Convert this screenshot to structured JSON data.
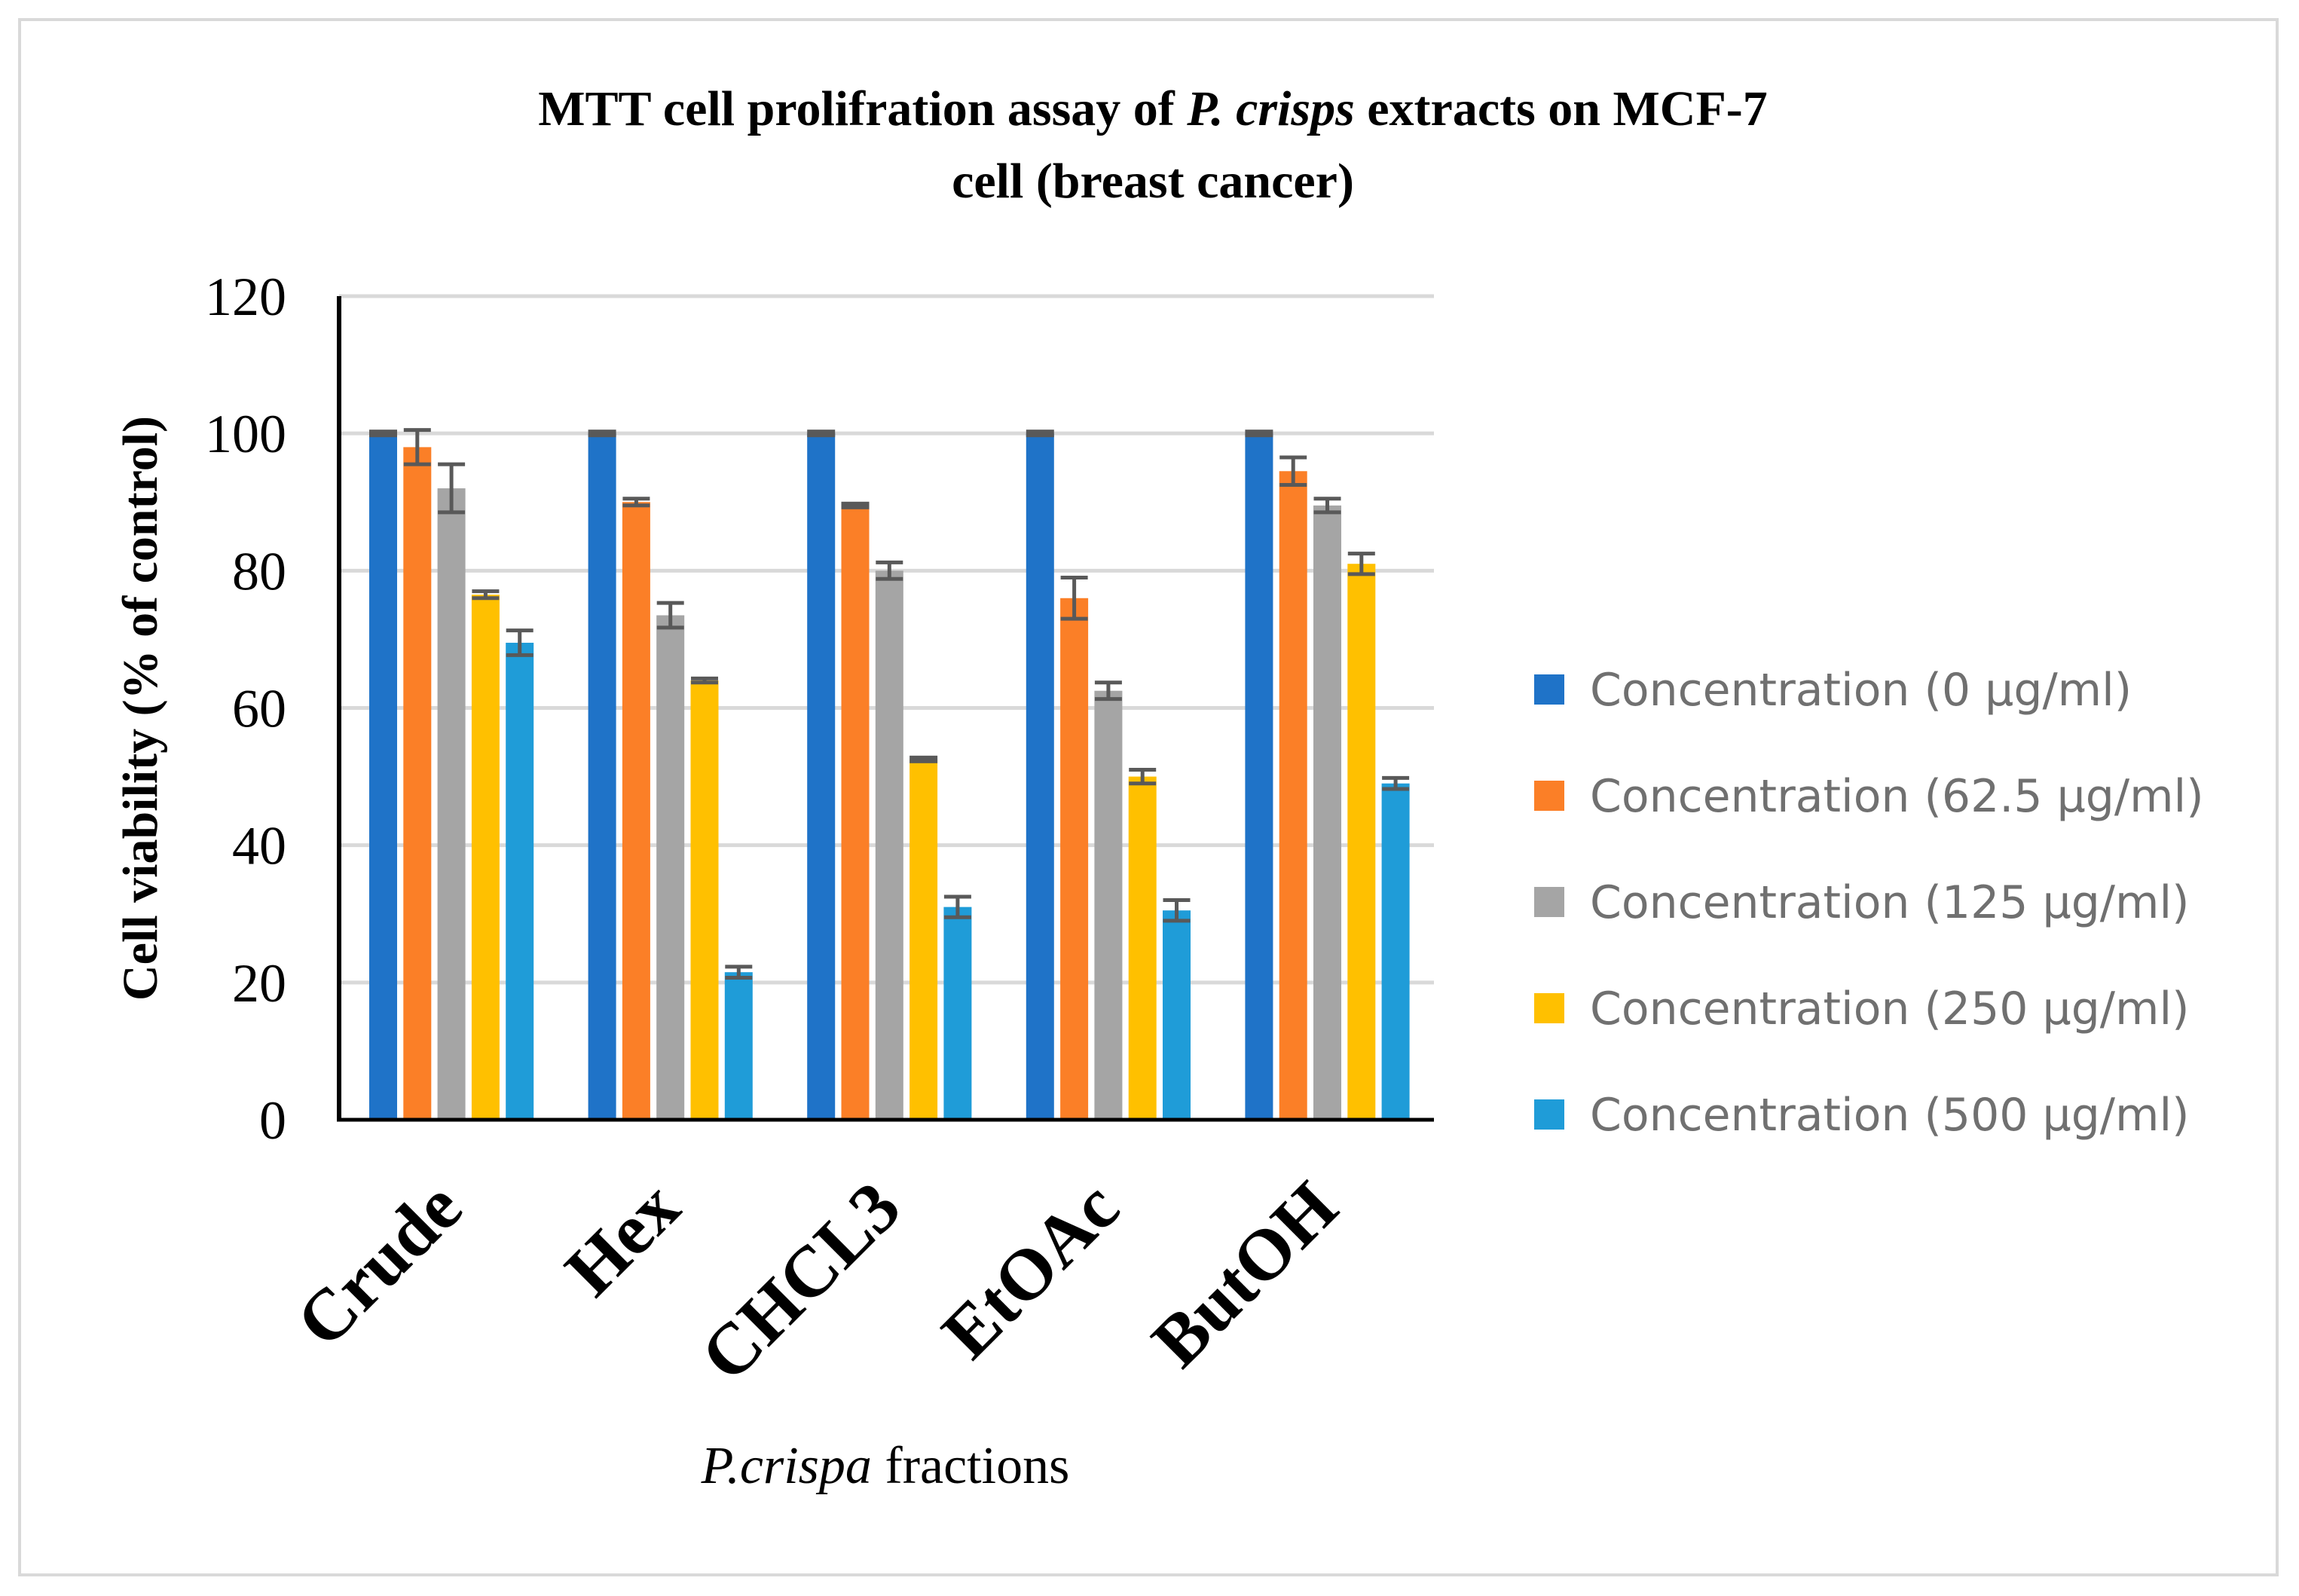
{
  "chart_data": {
    "type": "bar",
    "title_parts": [
      {
        "text": "MTT cell prolifration assay of ",
        "italic": false
      },
      {
        "text": "P. crisps",
        "italic": true
      },
      {
        "text": " extracts on MCF-7",
        "italic": false
      }
    ],
    "title_line2": "cell (breast cancer)",
    "xlabel_parts": [
      {
        "text": "P.crispa",
        "italic": true
      },
      {
        "text": " fractions",
        "italic": false
      }
    ],
    "ylabel": "Cell viability (% of control)",
    "ylim": [
      0,
      120
    ],
    "yticks": [
      "0",
      "20",
      "40",
      "60",
      "80",
      "100",
      "120"
    ],
    "categories": [
      "Crude",
      "Hex",
      "CHCL3",
      "EtOAc",
      "ButOH"
    ],
    "grid": true,
    "legend_position": "right",
    "error_bar_color": "#595959",
    "series": [
      {
        "name": "Concentration (0 µg/ml)",
        "color": "#1f73c8",
        "values": [
          100,
          100,
          100,
          100,
          100
        ],
        "errors": [
          0,
          0,
          0,
          0,
          0
        ]
      },
      {
        "name": "Concentration (62.5 µg/ml)",
        "color": "#fb7f27",
        "values": [
          98,
          90,
          89.5,
          76,
          94.5
        ],
        "errors": [
          2.5,
          0.5,
          0,
          3,
          2
        ]
      },
      {
        "name": "Concentration (125 µg/ml)",
        "color": "#a5a5a5",
        "values": [
          92,
          73.5,
          80,
          62.5,
          89.5
        ],
        "errors": [
          3.5,
          1.8,
          1.2,
          1.2,
          1
        ]
      },
      {
        "name": "Concentration (250 µg/ml)",
        "color": "#ffc000",
        "values": [
          76.5,
          64,
          52.5,
          50,
          81
        ],
        "errors": [
          0.5,
          0.3,
          0,
          1,
          1.5
        ]
      },
      {
        "name": "Concentration (500 µg/ml)",
        "color": "#1f9cd8",
        "values": [
          69.5,
          21.5,
          31,
          30.5,
          49
        ],
        "errors": [
          1.8,
          0.8,
          1.5,
          1.5,
          0.8
        ]
      }
    ]
  }
}
